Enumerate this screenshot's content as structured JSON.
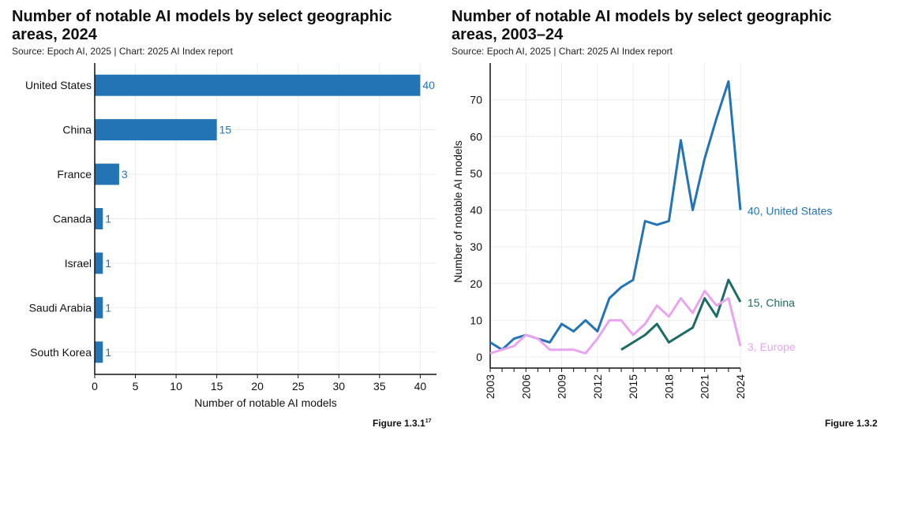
{
  "left": {
    "title": "Number of notable AI models by select geographic areas, 2024",
    "source": "Source: Epoch AI, 2025 | Chart: 2025 AI Index report",
    "figure_label": "Figure 1.3.1",
    "figure_sup": "17",
    "chart_data": {
      "type": "bar",
      "orientation": "horizontal",
      "categories": [
        "United States",
        "China",
        "France",
        "Canada",
        "Israel",
        "Saudi Arabia",
        "South Korea"
      ],
      "values": [
        40,
        15,
        3,
        1,
        1,
        1,
        1
      ],
      "xlabel": "Number of notable AI models",
      "ylabel": "",
      "xlim": [
        0,
        42
      ],
      "xticks": [
        0,
        5,
        10,
        15,
        20,
        25,
        30,
        35,
        40
      ],
      "color": "#2374b5",
      "grid": true
    }
  },
  "right": {
    "title": "Number of notable AI models by select geographic areas, 2003–24",
    "source": "Source: Epoch AI, 2025 | Chart: 2025 AI Index report",
    "figure_label": "Figure 1.3.2",
    "chart_data": {
      "type": "line",
      "xlabel": "",
      "ylabel": "Number of notable AI models",
      "xlim": [
        2003,
        2024
      ],
      "ylim": [
        -3,
        80
      ],
      "xticks": [
        2003,
        2006,
        2009,
        2012,
        2015,
        2018,
        2021,
        2024
      ],
      "yticks": [
        0,
        10,
        20,
        30,
        40,
        50,
        60,
        70
      ],
      "grid": true,
      "series": [
        {
          "label": "40, United States",
          "color": "#2374b5",
          "x": [
            2003,
            2004,
            2005,
            2006,
            2007,
            2008,
            2009,
            2010,
            2011,
            2012,
            2013,
            2014,
            2015,
            2016,
            2017,
            2018,
            2019,
            2020,
            2021,
            2022,
            2023,
            2024
          ],
          "y": [
            4,
            2,
            5,
            6,
            5,
            4,
            9,
            7,
            10,
            7,
            16,
            19,
            21,
            37,
            36,
            37,
            59,
            40,
            54,
            65,
            75,
            40
          ]
        },
        {
          "label": "15, China",
          "color": "#1d6b64",
          "x": [
            2014,
            2015,
            2016,
            2017,
            2018,
            2019,
            2020,
            2021,
            2022,
            2023,
            2024
          ],
          "y": [
            2,
            4,
            6,
            9,
            4,
            6,
            8,
            16,
            11,
            21,
            15
          ]
        },
        {
          "label": "3, Europe",
          "color": "#e9a4f0",
          "x": [
            2003,
            2004,
            2005,
            2006,
            2007,
            2008,
            2009,
            2010,
            2011,
            2012,
            2013,
            2014,
            2015,
            2016,
            2017,
            2018,
            2019,
            2020,
            2021,
            2022,
            2023,
            2024
          ],
          "y": [
            1,
            2,
            3,
            6,
            5,
            2,
            2,
            2,
            1,
            5,
            10,
            10,
            6,
            9,
            14,
            11,
            16,
            12,
            18,
            14,
            16,
            3
          ]
        }
      ]
    }
  }
}
